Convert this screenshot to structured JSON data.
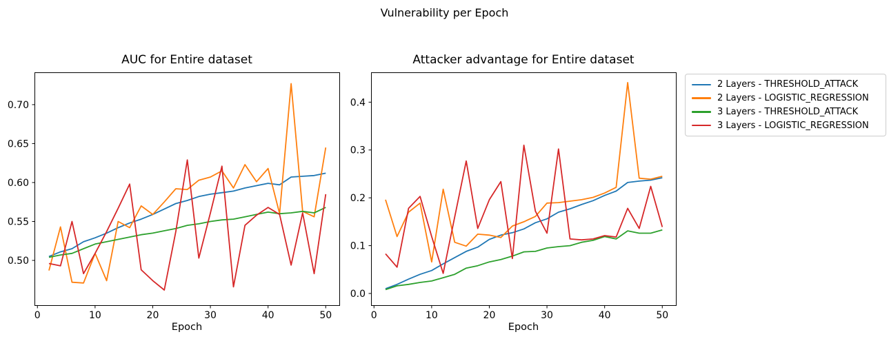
{
  "figure": {
    "suptitle": "Vulnerability per Epoch",
    "background_color": "#ffffff",
    "axis_color": "#000000",
    "legend_border_color": "#cccccc"
  },
  "chart_data": [
    {
      "type": "line",
      "title": "AUC for Entire dataset",
      "xlabel": "Epoch",
      "ylabel": "",
      "grid": false,
      "legend_position": "outside-upper-right",
      "x": [
        2,
        4,
        6,
        8,
        10,
        12,
        14,
        16,
        18,
        20,
        22,
        24,
        26,
        28,
        30,
        32,
        34,
        36,
        38,
        40,
        42,
        44,
        46,
        48,
        50
      ],
      "xticks": [
        0,
        10,
        20,
        30,
        40,
        50
      ],
      "xtick_labels": [
        "0",
        "10",
        "20",
        "30",
        "40",
        "50"
      ],
      "yticks": [
        0.5,
        0.55,
        0.6,
        0.65,
        0.7
      ],
      "ytick_labels": [
        "0.50",
        "0.55",
        "0.60",
        "0.65",
        "0.70"
      ],
      "xlim": [
        -0.51,
        52.36
      ],
      "ylim": [
        0.4425,
        0.7415
      ],
      "series": [
        {
          "name": "2 Layers - THRESHOLD_ATTACK",
          "color": "#1f77b4",
          "values": [
            0.505,
            0.511,
            0.515,
            0.524,
            0.529,
            0.535,
            0.542,
            0.548,
            0.553,
            0.559,
            0.566,
            0.573,
            0.577,
            0.582,
            0.585,
            0.587,
            0.589,
            0.593,
            0.596,
            0.599,
            0.597,
            0.607,
            0.608,
            0.609,
            0.612
          ]
        },
        {
          "name": "2 Layers - LOGISTIC_REGRESSION",
          "color": "#ff7f0e",
          "values": [
            0.487,
            0.543,
            0.472,
            0.471,
            0.509,
            0.474,
            0.55,
            0.542,
            0.57,
            0.559,
            0.575,
            0.592,
            0.591,
            0.603,
            0.607,
            0.615,
            0.593,
            0.623,
            0.601,
            0.618,
            0.56,
            0.727,
            0.563,
            0.556,
            0.645
          ]
        },
        {
          "name": "3 Layers - THRESHOLD_ATTACK",
          "color": "#2ca02c",
          "values": [
            0.504,
            0.507,
            0.509,
            0.515,
            0.521,
            0.524,
            0.527,
            0.53,
            0.533,
            0.535,
            0.538,
            0.541,
            0.545,
            0.547,
            0.55,
            0.552,
            0.553,
            0.556,
            0.559,
            0.562,
            0.56,
            0.561,
            0.563,
            0.561,
            0.568
          ]
        },
        {
          "name": "3 Layers - LOGISTIC_REGRESSION",
          "color": "#d62728",
          "values": [
            0.496,
            0.493,
            0.55,
            0.483,
            0.509,
            0.537,
            0.567,
            0.598,
            0.488,
            0.474,
            0.462,
            0.537,
            0.629,
            0.503,
            0.561,
            0.621,
            0.466,
            0.545,
            0.558,
            0.568,
            0.559,
            0.494,
            0.561,
            0.483,
            0.585
          ]
        }
      ]
    },
    {
      "type": "line",
      "title": "Attacker advantage for Entire dataset",
      "xlabel": "Epoch",
      "ylabel": "",
      "grid": false,
      "x": [
        2,
        4,
        6,
        8,
        10,
        12,
        14,
        16,
        18,
        20,
        22,
        24,
        26,
        28,
        30,
        32,
        34,
        36,
        38,
        40,
        42,
        44,
        46,
        48,
        50
      ],
      "xticks": [
        0,
        10,
        20,
        30,
        40,
        50
      ],
      "xtick_labels": [
        "0",
        "10",
        "20",
        "30",
        "40",
        "50"
      ],
      "yticks": [
        0.0,
        0.1,
        0.2,
        0.3,
        0.4
      ],
      "ytick_labels": [
        "0.0",
        "0.1",
        "0.2",
        "0.3",
        "0.4"
      ],
      "xlim": [
        -0.51,
        52.36
      ],
      "ylim": [
        -0.0245,
        0.4624
      ],
      "series": [
        {
          "name": "2 Layers - THRESHOLD_ATTACK",
          "color": "#1f77b4",
          "values": [
            0.01,
            0.019,
            0.03,
            0.04,
            0.048,
            0.062,
            0.075,
            0.088,
            0.097,
            0.113,
            0.122,
            0.127,
            0.135,
            0.148,
            0.156,
            0.17,
            0.177,
            0.186,
            0.194,
            0.205,
            0.214,
            0.232,
            0.235,
            0.237,
            0.242
          ]
        },
        {
          "name": "2 Layers - LOGISTIC_REGRESSION",
          "color": "#ff7f0e",
          "values": [
            0.196,
            0.119,
            0.17,
            0.189,
            0.066,
            0.218,
            0.107,
            0.099,
            0.124,
            0.122,
            0.117,
            0.141,
            0.15,
            0.161,
            0.189,
            0.19,
            0.193,
            0.196,
            0.201,
            0.21,
            0.222,
            0.441,
            0.241,
            0.239,
            0.245
          ]
        },
        {
          "name": "3 Layers - THRESHOLD_ATTACK",
          "color": "#2ca02c",
          "values": [
            0.008,
            0.016,
            0.019,
            0.023,
            0.026,
            0.033,
            0.04,
            0.053,
            0.058,
            0.066,
            0.071,
            0.078,
            0.087,
            0.088,
            0.095,
            0.098,
            0.1,
            0.107,
            0.111,
            0.119,
            0.114,
            0.131,
            0.126,
            0.126,
            0.133
          ]
        },
        {
          "name": "3 Layers - LOGISTIC_REGRESSION",
          "color": "#d62728",
          "values": [
            0.083,
            0.055,
            0.178,
            0.203,
            0.119,
            0.042,
            0.16,
            0.277,
            0.136,
            0.196,
            0.234,
            0.073,
            0.31,
            0.172,
            0.126,
            0.302,
            0.114,
            0.112,
            0.114,
            0.121,
            0.118,
            0.178,
            0.136,
            0.224,
            0.139
          ]
        }
      ]
    }
  ]
}
